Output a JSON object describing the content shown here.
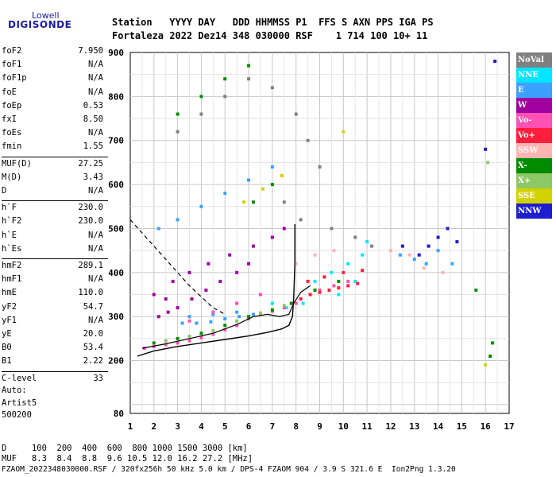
{
  "logo": {
    "top": "Lowell",
    "main": "DIGISONDE"
  },
  "header": {
    "line1": "Station   YYYY DAY   DDD HHMMSS P1  FFS S AXN PPS IGA PS",
    "line2": "Fortaleza 2022 Dez14 348 030000 RSF    1 714 100 10+ 11"
  },
  "params": [
    {
      "label": "foF2",
      "value": "7.950"
    },
    {
      "label": "foF1",
      "value": "N/A"
    },
    {
      "label": "foF1p",
      "value": "N/A"
    },
    {
      "label": "foE",
      "value": "N/A"
    },
    {
      "label": "foEp",
      "value": "0.53"
    },
    {
      "label": "fxI",
      "value": "8.50"
    },
    {
      "label": "foEs",
      "value": "N/A"
    },
    {
      "label": "fmin",
      "value": "1.55"
    },
    {
      "label": "MUF(D)",
      "value": "27.25"
    },
    {
      "label": "M(D)",
      "value": "3.43"
    },
    {
      "label": "D",
      "value": "N/A"
    },
    {
      "label": "h`F",
      "value": "230.0"
    },
    {
      "label": "h`F2",
      "value": "230.0"
    },
    {
      "label": "h`E",
      "value": "N/A"
    },
    {
      "label": "h`Es",
      "value": "N/A"
    },
    {
      "label": "hmF2",
      "value": "289.1"
    },
    {
      "label": "hmF1",
      "value": "N/A"
    },
    {
      "label": "hmE",
      "value": "110.0"
    },
    {
      "label": "yF2",
      "value": "54.7"
    },
    {
      "label": "yF1",
      "value": "N/A"
    },
    {
      "label": "yE",
      "value": "20.0"
    },
    {
      "label": "B0",
      "value": "53.4"
    },
    {
      "label": "B1",
      "value": "2.22"
    },
    {
      "label": "C-level",
      "value": "33"
    }
  ],
  "auto": {
    "line1": "Auto:",
    "line2": "Artist5",
    "line3": "500200"
  },
  "legend": [
    {
      "label": "NoVal",
      "color": "#808080"
    },
    {
      "label": "NNE",
      "color": "#00e6ff"
    },
    {
      "label": "E",
      "color": "#3ca0ff"
    },
    {
      "label": "W",
      "color": "#a000a0"
    },
    {
      "label": "Vo-",
      "color": "#ff50b4"
    },
    {
      "label": "Vo+",
      "color": "#ff1e3c"
    },
    {
      "label": "SSW",
      "color": "#ffb4b4"
    },
    {
      "label": "X-",
      "color": "#008c00"
    },
    {
      "label": "X+",
      "color": "#8cc864"
    },
    {
      "label": "SSE",
      "color": "#d2d200"
    },
    {
      "label": "NNW",
      "color": "#1e1ecd"
    }
  ],
  "footer": {
    "d_line": "D     100  200  400  600  800 1000 1500 3000 [km]",
    "muf_line": "MUF   8.3  8.4  8.8  9.6 10.5 12.0 16.2 27.2 [MHz]",
    "file_line": "FZAOM_2022348030000.RSF / 320fx256h 50 kHz 5.0 km / DPS-4 FZAOM 904 / 3.9 S 321.6 E  Ion2Png 1.3.20"
  },
  "chart_data": {
    "type": "scatter",
    "title": "",
    "xlabel": "",
    "ylabel": "",
    "xlim": [
      1,
      17
    ],
    "ylim": [
      80,
      900
    ],
    "x_ticks": [
      1,
      2,
      3,
      4,
      5,
      6,
      7,
      8,
      9,
      10,
      11,
      12,
      13,
      14,
      15,
      16,
      17
    ],
    "y_ticks": [
      80,
      200,
      300,
      400,
      500,
      600,
      700,
      800,
      900
    ],
    "grid": true,
    "legend_position": "right",
    "series": [
      {
        "name": "NNE",
        "color": "#00e6ff",
        "points": [
          [
            8.8,
            380
          ],
          [
            9.5,
            400
          ],
          [
            10.2,
            420
          ],
          [
            10.8,
            440
          ],
          [
            11.0,
            470
          ],
          [
            10.5,
            380
          ],
          [
            9.8,
            350
          ],
          [
            8.3,
            330
          ],
          [
            7.6,
            320
          ],
          [
            7.0,
            330
          ]
        ]
      },
      {
        "name": "E",
        "color": "#3ca0ff",
        "points": [
          [
            3.2,
            285
          ],
          [
            3.8,
            285
          ],
          [
            4.4,
            288
          ],
          [
            5.0,
            295
          ],
          [
            5.6,
            300
          ],
          [
            6.2,
            305
          ],
          [
            3.5,
            300
          ],
          [
            4.5,
            305
          ],
          [
            5.5,
            310
          ],
          [
            2.2,
            500
          ],
          [
            3.0,
            520
          ],
          [
            4.0,
            550
          ],
          [
            5.0,
            580
          ],
          [
            6.0,
            610
          ],
          [
            7.0,
            640
          ],
          [
            12.4,
            440
          ],
          [
            13.0,
            430
          ],
          [
            13.5,
            420
          ],
          [
            14.0,
            450
          ],
          [
            14.6,
            420
          ]
        ]
      },
      {
        "name": "W",
        "color": "#a000a0",
        "points": [
          [
            2.2,
            300
          ],
          [
            2.6,
            310
          ],
          [
            3.0,
            320
          ],
          [
            3.6,
            340
          ],
          [
            4.2,
            360
          ],
          [
            4.8,
            380
          ],
          [
            5.5,
            400
          ],
          [
            6.0,
            420
          ],
          [
            2.8,
            380
          ],
          [
            3.5,
            400
          ],
          [
            4.3,
            420
          ],
          [
            5.2,
            440
          ],
          [
            6.2,
            460
          ],
          [
            7.0,
            480
          ],
          [
            7.5,
            500
          ],
          [
            2.0,
            350
          ],
          [
            2.5,
            340
          ]
        ]
      },
      {
        "name": "Vo-",
        "color": "#ff50b4",
        "points": [
          [
            1.6,
            228
          ],
          [
            2.0,
            232
          ],
          [
            2.5,
            236
          ],
          [
            3.0,
            240
          ],
          [
            3.5,
            245
          ],
          [
            4.0,
            252
          ],
          [
            4.5,
            260
          ],
          [
            5.0,
            270
          ],
          [
            5.5,
            280
          ],
          [
            6.0,
            295
          ],
          [
            6.5,
            305
          ],
          [
            7.0,
            312
          ],
          [
            7.5,
            320
          ],
          [
            8.0,
            330
          ],
          [
            3.5,
            290
          ],
          [
            4.5,
            310
          ],
          [
            5.5,
            330
          ],
          [
            6.5,
            350
          ],
          [
            9.0,
            360
          ],
          [
            9.6,
            370
          ],
          [
            10.2,
            380
          ]
        ]
      },
      {
        "name": "Vo+",
        "color": "#ff1e3c",
        "points": [
          [
            8.2,
            340
          ],
          [
            8.6,
            350
          ],
          [
            9.0,
            355
          ],
          [
            9.4,
            360
          ],
          [
            9.8,
            365
          ],
          [
            10.2,
            370
          ],
          [
            10.6,
            375
          ],
          [
            8.5,
            380
          ],
          [
            9.2,
            390
          ],
          [
            10.0,
            400
          ],
          [
            10.8,
            405
          ]
        ]
      },
      {
        "name": "SSW",
        "color": "#ffb4b4",
        "points": [
          [
            8.0,
            420
          ],
          [
            8.8,
            440
          ],
          [
            9.6,
            450
          ],
          [
            12.0,
            450
          ],
          [
            12.8,
            440
          ],
          [
            13.4,
            410
          ],
          [
            14.2,
            400
          ]
        ]
      },
      {
        "name": "X-",
        "color": "#008c00",
        "points": [
          [
            2.0,
            240
          ],
          [
            3.0,
            250
          ],
          [
            4.0,
            262
          ],
          [
            5.0,
            280
          ],
          [
            6.0,
            300
          ],
          [
            7.0,
            315
          ],
          [
            7.8,
            330
          ],
          [
            8.8,
            360
          ],
          [
            9.8,
            380
          ],
          [
            3.0,
            760
          ],
          [
            4.0,
            800
          ],
          [
            5.0,
            840
          ],
          [
            6.0,
            870
          ],
          [
            6.2,
            560
          ],
          [
            7.0,
            600
          ],
          [
            16.2,
            210
          ],
          [
            16.3,
            240
          ],
          [
            15.6,
            360
          ]
        ]
      },
      {
        "name": "X+",
        "color": "#8cc864",
        "points": [
          [
            2.5,
            245
          ],
          [
            3.5,
            255
          ],
          [
            4.5,
            268
          ],
          [
            5.5,
            290
          ],
          [
            6.5,
            308
          ],
          [
            7.5,
            325
          ],
          [
            16.1,
            650
          ]
        ]
      },
      {
        "name": "SSE",
        "color": "#d2d200",
        "points": [
          [
            5.8,
            560
          ],
          [
            6.6,
            590
          ],
          [
            7.4,
            620
          ],
          [
            10.0,
            720
          ],
          [
            16.0,
            190
          ]
        ]
      },
      {
        "name": "NNW",
        "color": "#1e1ecd",
        "points": [
          [
            13.6,
            460
          ],
          [
            14.0,
            480
          ],
          [
            14.4,
            500
          ],
          [
            14.8,
            470
          ],
          [
            13.2,
            440
          ],
          [
            12.5,
            460
          ],
          [
            16.0,
            680
          ],
          [
            16.4,
            880
          ]
        ]
      },
      {
        "name": "NoVal",
        "color": "#808080",
        "points": [
          [
            3.0,
            720
          ],
          [
            4.0,
            760
          ],
          [
            5.0,
            800
          ],
          [
            6.0,
            840
          ],
          [
            7.0,
            820
          ],
          [
            8.0,
            760
          ],
          [
            8.5,
            700
          ],
          [
            9.0,
            640
          ],
          [
            7.5,
            560
          ],
          [
            8.2,
            520
          ],
          [
            9.5,
            500
          ],
          [
            10.5,
            480
          ],
          [
            11.2,
            460
          ]
        ]
      }
    ],
    "profile_curve": [
      [
        1.3,
        210
      ],
      [
        2.0,
        222
      ],
      [
        3.0,
        232
      ],
      [
        4.0,
        240
      ],
      [
        5.0,
        248
      ],
      [
        6.0,
        256
      ],
      [
        6.8,
        264
      ],
      [
        7.4,
        272
      ],
      [
        7.7,
        280
      ],
      [
        7.85,
        300
      ],
      [
        7.9,
        340
      ],
      [
        7.95,
        420
      ],
      [
        7.95,
        510
      ]
    ],
    "trace_curve": [
      [
        1.5,
        228
      ],
      [
        2.5,
        238
      ],
      [
        3.5,
        250
      ],
      [
        4.5,
        262
      ],
      [
        5.5,
        282
      ],
      [
        6.2,
        300
      ],
      [
        6.8,
        305
      ],
      [
        7.3,
        300
      ],
      [
        7.7,
        305
      ],
      [
        7.9,
        330
      ],
      [
        8.2,
        355
      ],
      [
        8.6,
        370
      ]
    ],
    "dashed_curve": [
      [
        1.0,
        520
      ],
      [
        1.5,
        490
      ],
      [
        2.0,
        460
      ],
      [
        2.5,
        430
      ],
      [
        3.0,
        400
      ],
      [
        3.5,
        370
      ],
      [
        4.0,
        345
      ],
      [
        4.5,
        320
      ],
      [
        5.0,
        305
      ]
    ]
  }
}
